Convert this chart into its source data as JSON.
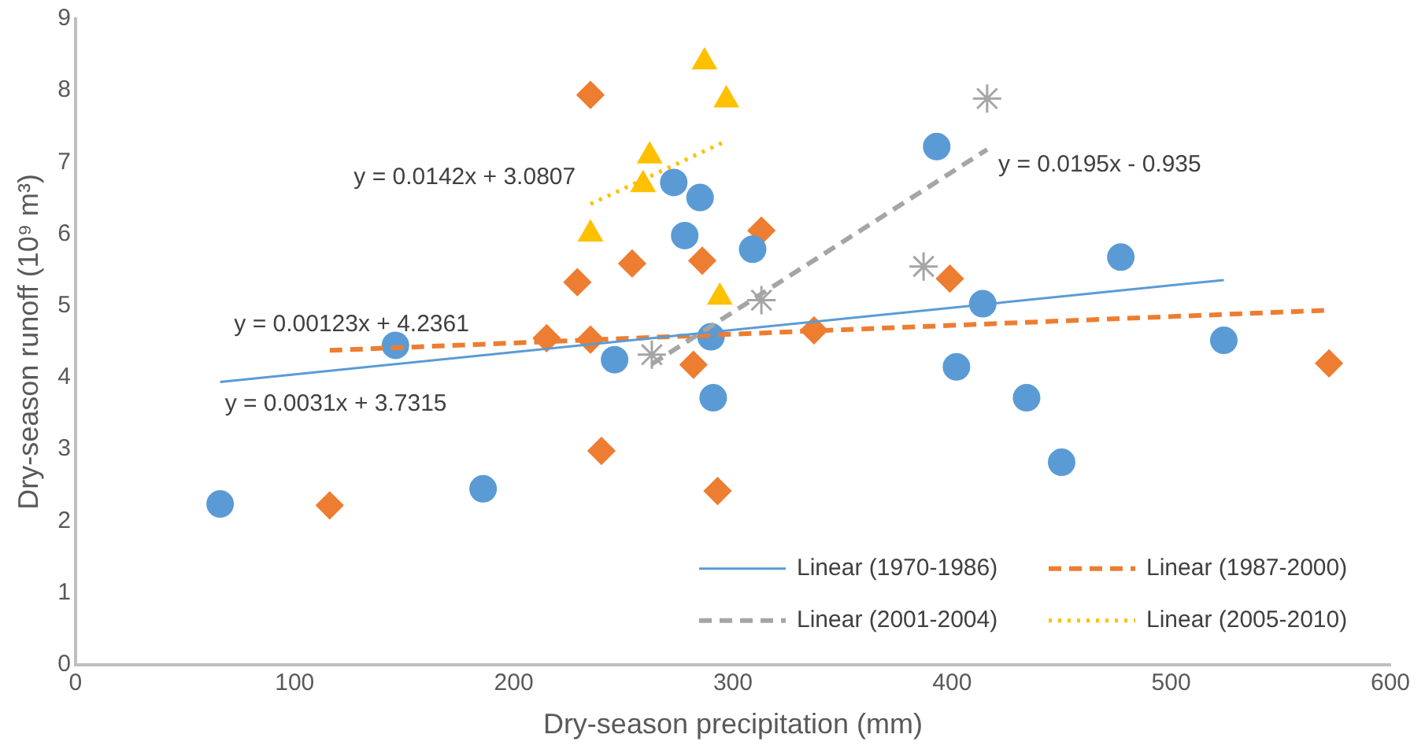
{
  "chart_data": {
    "type": "scatter",
    "xlabel": "Dry-season precipitation (mm)",
    "ylabel": "Dry-season runoff (10⁹ m³)",
    "xlim": [
      0,
      600
    ],
    "xticks": [
      0,
      100,
      200,
      300,
      400,
      500,
      600
    ],
    "ylim": [
      0,
      9
    ],
    "yticks": [
      0,
      1,
      2,
      3,
      4,
      5,
      6,
      7,
      8,
      9
    ],
    "grid": false,
    "legend": "bottom right",
    "series": [
      {
        "marker": "circle",
        "color": "#5b9bd5",
        "x": [
          66,
          146,
          186,
          246,
          273,
          285,
          278,
          290,
          291,
          309,
          393,
          414,
          402,
          434,
          450,
          477,
          524
        ],
        "values": [
          2.24,
          4.45,
          2.45,
          4.25,
          6.72,
          6.51,
          5.98,
          4.57,
          3.72,
          5.79,
          7.22,
          5.03,
          4.15,
          3.72,
          2.82,
          5.68,
          4.52
        ]
      },
      {
        "marker": "diamond",
        "color": "#ed7d31",
        "x": [
          116,
          235,
          229,
          254,
          215,
          235,
          240,
          282,
          286,
          293,
          313,
          337,
          399,
          572
        ],
        "values": [
          2.22,
          7.94,
          5.33,
          5.59,
          4.55,
          4.53,
          2.98,
          4.18,
          5.63,
          2.42,
          6.05,
          4.66,
          5.38,
          4.2
        ]
      },
      {
        "marker": "cross",
        "color": "#a5a5a5",
        "x": [
          263,
          313,
          387,
          416
        ],
        "values": [
          4.32,
          5.08,
          5.55,
          7.89
        ]
      },
      {
        "marker": "triangle",
        "color": "#ffc000",
        "x": [
          287,
          297,
          262,
          259,
          235,
          294
        ],
        "values": [
          8.4,
          7.87,
          7.09,
          6.69,
          6.0,
          5.12
        ]
      },
      {
        "type": "line",
        "name": "Linear (1970-1986)",
        "line_style": "solid",
        "color": "#5b9bd5",
        "x": [
          66,
          524
        ],
        "values": [
          3.94,
          5.36
        ]
      },
      {
        "type": "line",
        "name": "Linear (1987-2000)",
        "line_style": "dashed",
        "color": "#ed7d31",
        "x": [
          116,
          572
        ],
        "values": [
          4.38,
          4.94
        ]
      },
      {
        "type": "line",
        "name": "Linear (2001-2004)",
        "line_style": "dashed",
        "color": "#a5a5a5",
        "x": [
          263,
          416
        ],
        "values": [
          4.19,
          7.18
        ]
      },
      {
        "type": "line",
        "name": "Linear (2005-2010)",
        "line_style": "dotted",
        "color": "#ffc000",
        "x": [
          235,
          297
        ],
        "values": [
          6.42,
          7.3
        ]
      }
    ],
    "annotations": [
      "y = 0.0142x + 3.0807",
      "y = 0.00123x + 4.2361",
      "y = 0.0031x + 3.7315",
      "y = 0.0195x - 0.935"
    ]
  }
}
